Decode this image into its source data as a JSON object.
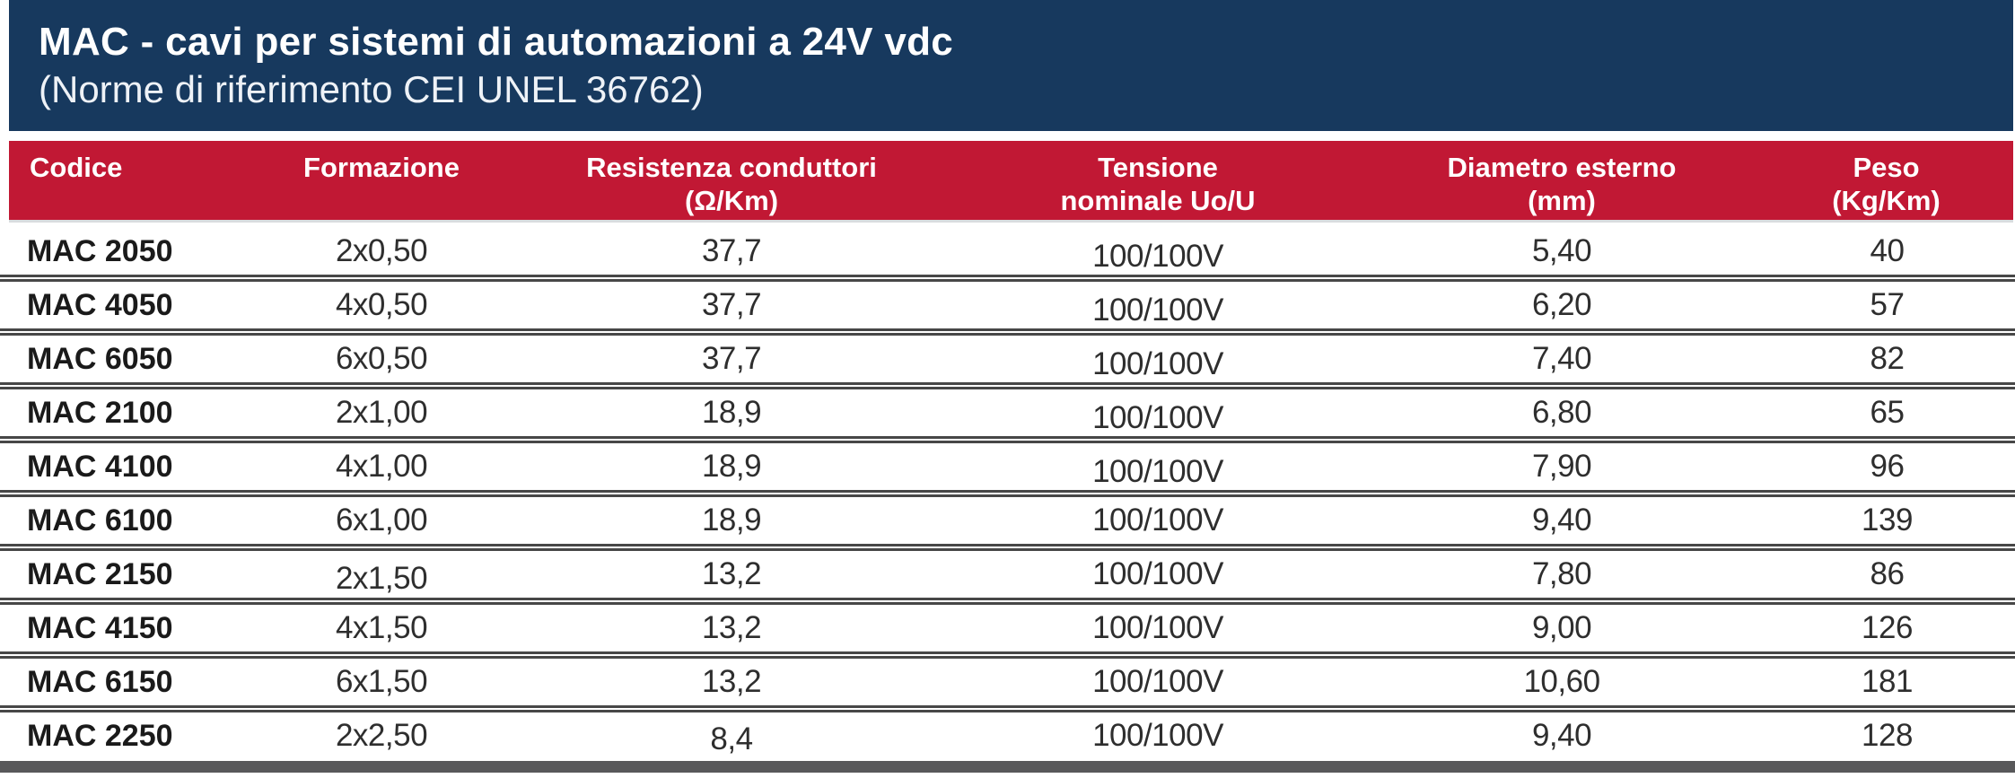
{
  "banner": {
    "title": "MAC - cavi per sistemi di automazioni a 24V vdc",
    "subtitle": "(Norme di riferimento CEI UNEL 36762)",
    "background_color": "#17395e"
  },
  "table": {
    "header_background_color": "#c11834",
    "separator_color": "#474747",
    "bottom_rule_color": "#58585a",
    "columns": [
      {
        "id": "codice",
        "line1": "Codice",
        "line2": ""
      },
      {
        "id": "formazione",
        "line1": "Formazione",
        "line2": ""
      },
      {
        "id": "resistenza",
        "line1": "Resistenza conduttori",
        "line2": "(Ω/Km)"
      },
      {
        "id": "tensione",
        "line1": "Tensione",
        "line2": "nominale Uo/U"
      },
      {
        "id": "diametro",
        "line1": "Diametro esterno",
        "line2": "(mm)"
      },
      {
        "id": "peso",
        "line1": "Peso",
        "line2": "(Kg/Km)"
      }
    ],
    "rows": [
      {
        "codice": "MAC 2050",
        "formazione": "2x0,50",
        "resistenza": "37,7",
        "tensione": "100/100V",
        "diametro": "5,40",
        "peso": "40"
      },
      {
        "codice": "MAC 4050",
        "formazione": "4x0,50",
        "resistenza": "37,7",
        "tensione": "100/100V",
        "diametro": "6,20",
        "peso": "57"
      },
      {
        "codice": "MAC 6050",
        "formazione": "6x0,50",
        "resistenza": "37,7",
        "tensione": "100/100V",
        "diametro": "7,40",
        "peso": "82"
      },
      {
        "codice": "MAC 2100",
        "formazione": "2x1,00",
        "resistenza": "18,9",
        "tensione": "100/100V",
        "diametro": "6,80",
        "peso": "65"
      },
      {
        "codice": "MAC 4100",
        "formazione": "4x1,00",
        "resistenza": "18,9",
        "tensione": "100/100V",
        "diametro": "7,90",
        "peso": "96"
      },
      {
        "codice": "MAC 6100",
        "formazione": "6x1,00",
        "resistenza": "18,9",
        "tensione": "100/100V",
        "diametro": "9,40",
        "peso": "139"
      },
      {
        "codice": "MAC 2150",
        "formazione": "2x1,50",
        "resistenza": "13,2",
        "tensione": "100/100V",
        "diametro": "7,80",
        "peso": "86"
      },
      {
        "codice": "MAC 4150",
        "formazione": "4x1,50",
        "resistenza": "13,2",
        "tensione": "100/100V",
        "diametro": "9,00",
        "peso": "126"
      },
      {
        "codice": "MAC 6150",
        "formazione": "6x1,50",
        "resistenza": "13,2",
        "tensione": "100/100V",
        "diametro": "10,60",
        "peso": "181"
      },
      {
        "codice": "MAC 2250",
        "formazione": "2x2,50",
        "resistenza": "8,4",
        "tensione": "100/100V",
        "diametro": "9,40",
        "peso": "128"
      }
    ]
  }
}
